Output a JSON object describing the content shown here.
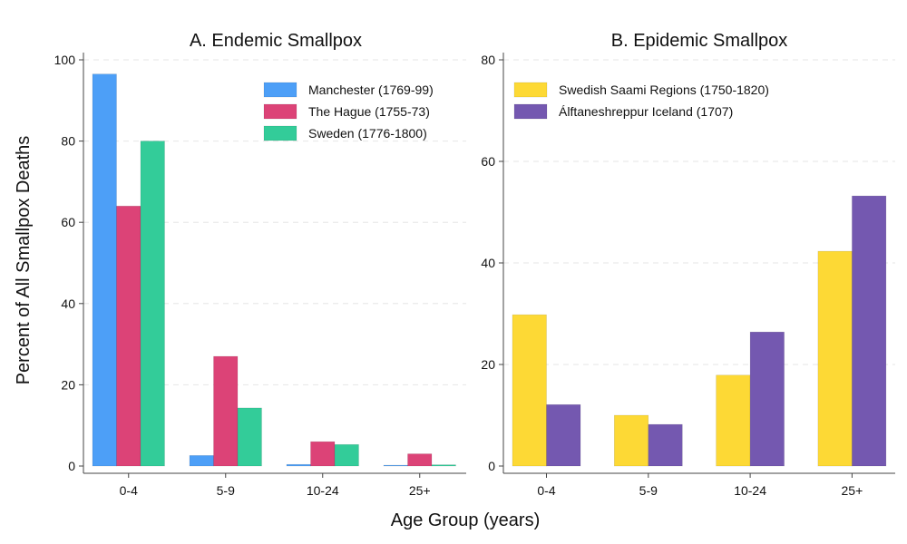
{
  "figure": {
    "ylabel": "Percent of All Smallpox Deaths",
    "xlabel": "Age Group (years)"
  },
  "chart_data": [
    {
      "type": "bar",
      "title": "A. Endemic Smallpox",
      "categories": [
        "0-4",
        "5-9",
        "10-24",
        "25+"
      ],
      "ylim": [
        0,
        100
      ],
      "yticks": [
        0,
        20,
        40,
        60,
        80,
        100
      ],
      "legend_position": "top-right",
      "series": [
        {
          "name": "Manchester (1769-99)",
          "color": "#4d9ff7",
          "values": [
            96.5,
            2.6,
            0.4,
            0.2
          ]
        },
        {
          "name": "The Hague (1755-73)",
          "color": "#dc4377",
          "values": [
            64.0,
            27.0,
            6.0,
            3.0
          ]
        },
        {
          "name": "Sweden (1776-1800)",
          "color": "#33cc99",
          "values": [
            80.0,
            14.3,
            5.3,
            0.3
          ]
        }
      ]
    },
    {
      "type": "bar",
      "title": "B. Epidemic Smallpox",
      "categories": [
        "0-4",
        "5-9",
        "10-24",
        "25+"
      ],
      "ylim": [
        0,
        80
      ],
      "yticks": [
        0,
        20,
        40,
        60,
        80
      ],
      "legend_position": "top-left",
      "series": [
        {
          "name": "Swedish Saami Regions (1750-1820)",
          "color": "#fdd935",
          "values": [
            29.8,
            10.0,
            17.9,
            42.3
          ]
        },
        {
          "name": "Álftaneshreppur Iceland (1707)",
          "color": "#7458b0",
          "values": [
            12.1,
            8.2,
            26.4,
            53.2
          ]
        }
      ]
    }
  ]
}
